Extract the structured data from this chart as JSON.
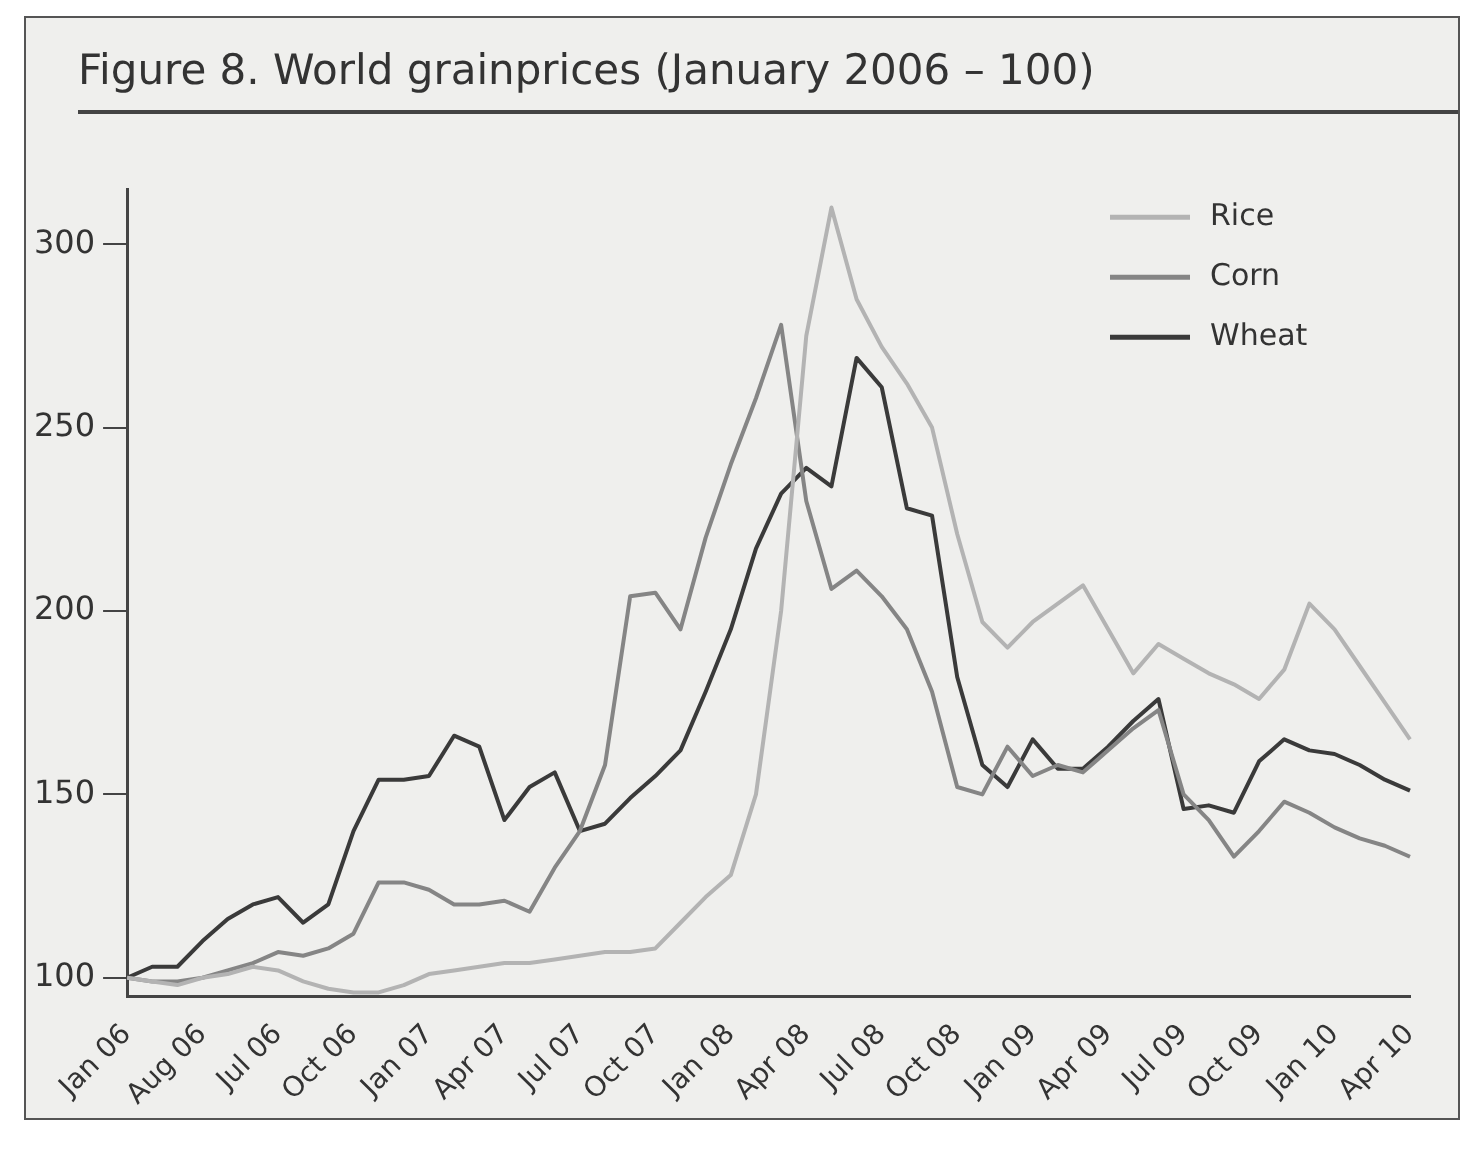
{
  "chart_data": {
    "type": "line",
    "title": "Figure 8. World grainprices (January 2006 – 100)",
    "categories": [
      "Jan 06",
      null,
      null,
      "Aug 06",
      null,
      null,
      "Jul 06",
      null,
      null,
      "Oct 06",
      null,
      null,
      "Jan 07",
      null,
      null,
      "Apr 07",
      null,
      null,
      "Jul 07",
      null,
      null,
      "Oct 07",
      null,
      null,
      "Jan 08",
      null,
      null,
      "Apr 08",
      null,
      null,
      "Jul 08",
      null,
      null,
      "Oct 08",
      null,
      null,
      "Jan 09",
      null,
      null,
      "Apr 09",
      null,
      null,
      "Jul 09",
      null,
      null,
      "Oct 09",
      null,
      null,
      "Jan 10",
      null,
      null,
      "Apr 10"
    ],
    "series": [
      {
        "name": "Rice",
        "color": "#b3b3b3",
        "values": [
          100,
          99,
          98,
          100,
          101,
          103,
          102,
          99,
          97,
          96,
          96,
          98,
          101,
          102,
          103,
          104,
          104,
          105,
          106,
          107,
          107,
          108,
          115,
          122,
          128,
          150,
          200,
          275,
          310,
          285,
          272,
          262,
          250,
          221,
          197,
          190,
          197,
          202,
          207,
          195,
          183,
          191,
          187,
          183,
          180,
          176,
          184,
          202,
          195,
          185,
          175,
          165
        ]
      },
      {
        "name": "Corn",
        "color": "#858585",
        "values": [
          100,
          99,
          99,
          100,
          102,
          104,
          107,
          106,
          108,
          112,
          126,
          126,
          124,
          120,
          120,
          121,
          118,
          130,
          140,
          158,
          204,
          205,
          195,
          220,
          240,
          258,
          278,
          230,
          206,
          211,
          204,
          195,
          178,
          152,
          150,
          163,
          155,
          158,
          156,
          162,
          168,
          173,
          150,
          143,
          133,
          140,
          148,
          145,
          141,
          138,
          136,
          133
        ]
      },
      {
        "name": "Wheat",
        "color": "#3a3a3a",
        "values": [
          100,
          103,
          103,
          110,
          116,
          120,
          122,
          115,
          120,
          140,
          154,
          154,
          155,
          166,
          163,
          143,
          152,
          156,
          140,
          142,
          149,
          155,
          162,
          178,
          195,
          217,
          232,
          239,
          234,
          269,
          261,
          228,
          226,
          182,
          158,
          152,
          165,
          157,
          157,
          163,
          170,
          176,
          146,
          147,
          145,
          159,
          165,
          162,
          161,
          158,
          154,
          151
        ]
      }
    ],
    "ylim": [
      95,
      315
    ],
    "yticks": [
      100,
      150,
      200,
      250,
      300
    ],
    "legend": "top right"
  }
}
